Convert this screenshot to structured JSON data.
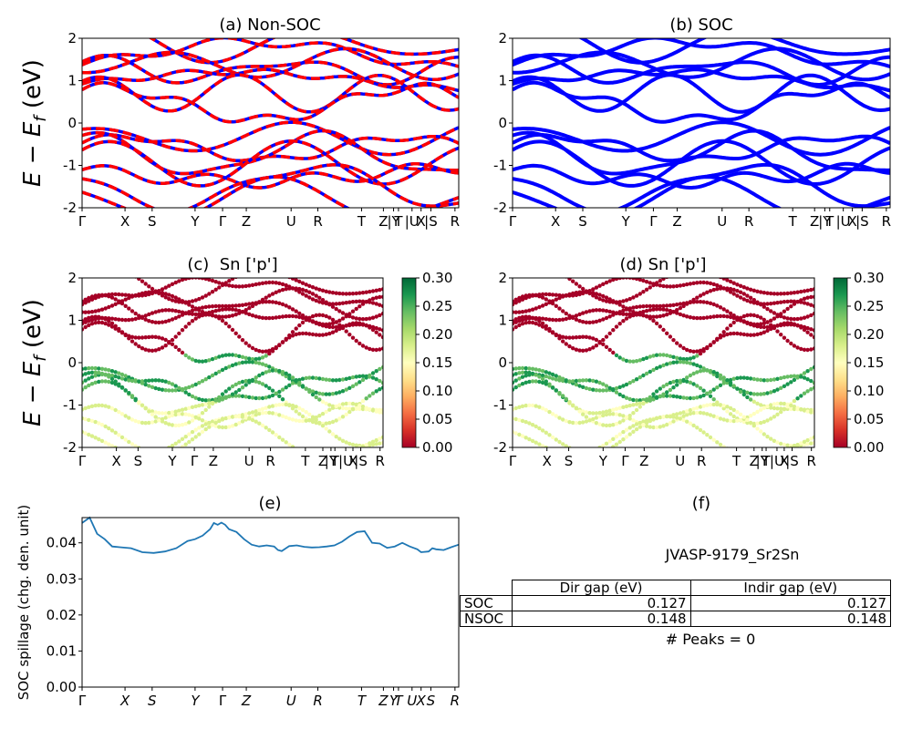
{
  "chart_data": [
    {
      "id": "a",
      "type": "line",
      "title": "(a) Non-SOC",
      "ylabel": "E − E_f (eV)",
      "ylim": [
        -2,
        2
      ],
      "yticks": [
        -2,
        -1,
        0,
        1,
        2
      ],
      "kpath_labels": [
        "Γ",
        "X",
        "S",
        "Y",
        "Γ",
        "Z",
        "U",
        "R",
        "T",
        "Z",
        "|Y",
        "T",
        "|U",
        "X",
        "|S",
        "R"
      ],
      "series": [
        {
          "color": "#ff0000",
          "dash_color": "#0000ff",
          "style": "dashed"
        }
      ]
    },
    {
      "id": "b",
      "type": "line",
      "title": "(b) SOC",
      "ylim": [
        -2,
        2
      ],
      "yticks": [
        -2,
        -1,
        0,
        1,
        2
      ],
      "kpath_labels": [
        "Γ",
        "X",
        "S",
        "Y",
        "Γ",
        "Z",
        "U",
        "R",
        "T",
        "Z",
        "|Y",
        "T",
        "|U",
        "X",
        "|S",
        "R"
      ],
      "series": [
        {
          "color": "#0000ff"
        }
      ]
    },
    {
      "id": "c",
      "type": "scatter",
      "title": "(c)  Sn ['p']",
      "ylabel": "E − E_f (eV)",
      "ylim": [
        -2,
        2
      ],
      "yticks": [
        -2,
        -1,
        0,
        1,
        2
      ],
      "kpath_labels": [
        "Γ",
        "X",
        "S",
        "Y",
        "Γ",
        "Z",
        "U",
        "R",
        "T",
        "Z",
        "|Y",
        "T",
        "|U",
        "X",
        "|S",
        "R"
      ],
      "colorbar": {
        "colormap": "RdYlGn",
        "range": [
          0.0,
          0.3
        ],
        "ticks": [
          "0.00",
          "0.05",
          "0.10",
          "0.15",
          "0.20",
          "0.25",
          "0.30"
        ]
      }
    },
    {
      "id": "d",
      "type": "scatter",
      "title": "(d) Sn ['p']",
      "ylim": [
        -2,
        2
      ],
      "yticks": [
        -2,
        -1,
        0,
        1,
        2
      ],
      "kpath_labels": [
        "Γ",
        "X",
        "S",
        "Y",
        "Γ",
        "Z",
        "U",
        "R",
        "T",
        "Z",
        "|Y",
        "T",
        "|U",
        "X",
        "|S",
        "R"
      ],
      "colorbar": {
        "colormap": "RdYlGn",
        "range": [
          0.0,
          0.3
        ],
        "ticks": [
          "0.00",
          "0.05",
          "0.10",
          "0.15",
          "0.20",
          "0.25",
          "0.30"
        ]
      }
    },
    {
      "id": "e",
      "type": "line",
      "title": "(e)",
      "ylabel": "SOC spillage (chg. den. unit)",
      "ylim": [
        0,
        0.047
      ],
      "yticks": [
        "0.00",
        "0.01",
        "0.02",
        "0.03",
        "0.04"
      ],
      "kpath_labels": [
        "Γ",
        "X",
        "S",
        "Y",
        "Γ",
        "Z",
        "U",
        "R",
        "T",
        "Z",
        "Y",
        "T",
        "U",
        "X",
        "S",
        "R"
      ],
      "x": [
        0,
        0.02,
        0.04,
        0.06,
        0.08,
        0.1,
        0.13,
        0.16,
        0.19,
        0.22,
        0.25,
        0.28,
        0.3,
        0.32,
        0.34,
        0.35,
        0.36,
        0.37,
        0.38,
        0.39,
        0.41,
        0.43,
        0.45,
        0.47,
        0.49,
        0.51,
        0.52,
        0.53,
        0.55,
        0.57,
        0.59,
        0.61,
        0.63,
        0.65,
        0.67,
        0.69,
        0.71,
        0.73,
        0.75,
        0.77,
        0.79,
        0.8,
        0.81,
        0.83,
        0.85,
        0.87,
        0.89,
        0.9,
        0.92,
        0.93,
        0.94,
        0.96,
        0.98,
        1
      ],
      "values": [
        0.0455,
        0.047,
        0.0425,
        0.041,
        0.039,
        0.0388,
        0.0385,
        0.0374,
        0.0372,
        0.0376,
        0.0385,
        0.0405,
        0.041,
        0.042,
        0.0438,
        0.0455,
        0.045,
        0.0456,
        0.045,
        0.0438,
        0.043,
        0.041,
        0.0395,
        0.039,
        0.0393,
        0.039,
        0.038,
        0.0377,
        0.0391,
        0.0393,
        0.0389,
        0.0387,
        0.0388,
        0.039,
        0.0393,
        0.0403,
        0.0418,
        0.043,
        0.0432,
        0.04,
        0.0398,
        0.0392,
        0.0386,
        0.039,
        0.04,
        0.039,
        0.0382,
        0.0374,
        0.0376,
        0.0385,
        0.0382,
        0.038,
        0.0388,
        0.0395
      ],
      "series": [
        {
          "color": "#1f77b4"
        }
      ]
    }
  ],
  "panel_f": {
    "title": "(f)",
    "material": "JVASP-9179_Sr2Sn",
    "columns": [
      "Dir gap (eV)",
      "Indir gap (eV)"
    ],
    "rows": [
      {
        "label": "SOC",
        "dir": "0.127",
        "indir": "0.127"
      },
      {
        "label": "NSOC",
        "dir": "0.148",
        "indir": "0.148"
      }
    ],
    "peaks": "# Peaks = 0"
  }
}
